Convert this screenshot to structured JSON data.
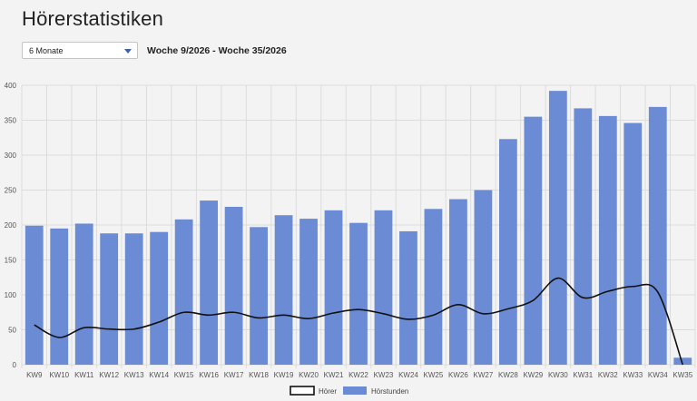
{
  "page": {
    "title": "Hörerstatistiken",
    "period_select": {
      "selected": "6 Monate"
    },
    "range_label": "Woche 9/2026 - Woche 35/2026"
  },
  "colors": {
    "bar": "#6b8bd4",
    "line": "#111111",
    "grid": "#dcdcdc",
    "dropdown_caret": "#3f5fae"
  },
  "chart_data": {
    "type": "bar",
    "categories": [
      "KW9",
      "KW10",
      "KW11",
      "KW12",
      "KW13",
      "KW14",
      "KW15",
      "KW16",
      "KW17",
      "KW18",
      "KW19",
      "KW20",
      "KW21",
      "KW22",
      "KW23",
      "KW24",
      "KW25",
      "KW26",
      "KW27",
      "KW28",
      "KW29",
      "KW30",
      "KW31",
      "KW32",
      "KW33",
      "KW34",
      "KW35"
    ],
    "ylim": [
      0,
      400
    ],
    "yticks": [
      0,
      50,
      100,
      150,
      200,
      250,
      300,
      350,
      400
    ],
    "grid": true,
    "legend_position": "bottom-center",
    "series": [
      {
        "name": "Hörer",
        "kind": "line",
        "values": [
          57,
          39,
          53,
          51,
          51,
          61,
          75,
          71,
          75,
          67,
          71,
          66,
          74,
          79,
          73,
          65,
          71,
          86,
          73,
          80,
          92,
          124,
          96,
          105,
          112,
          104,
          0
        ]
      },
      {
        "name": "Hörstunden",
        "kind": "bar",
        "values": [
          199,
          195,
          202,
          188,
          188,
          190,
          208,
          235,
          226,
          197,
          214,
          209,
          221,
          203,
          221,
          191,
          223,
          237,
          250,
          323,
          355,
          392,
          367,
          356,
          346,
          369,
          10
        ]
      }
    ]
  }
}
